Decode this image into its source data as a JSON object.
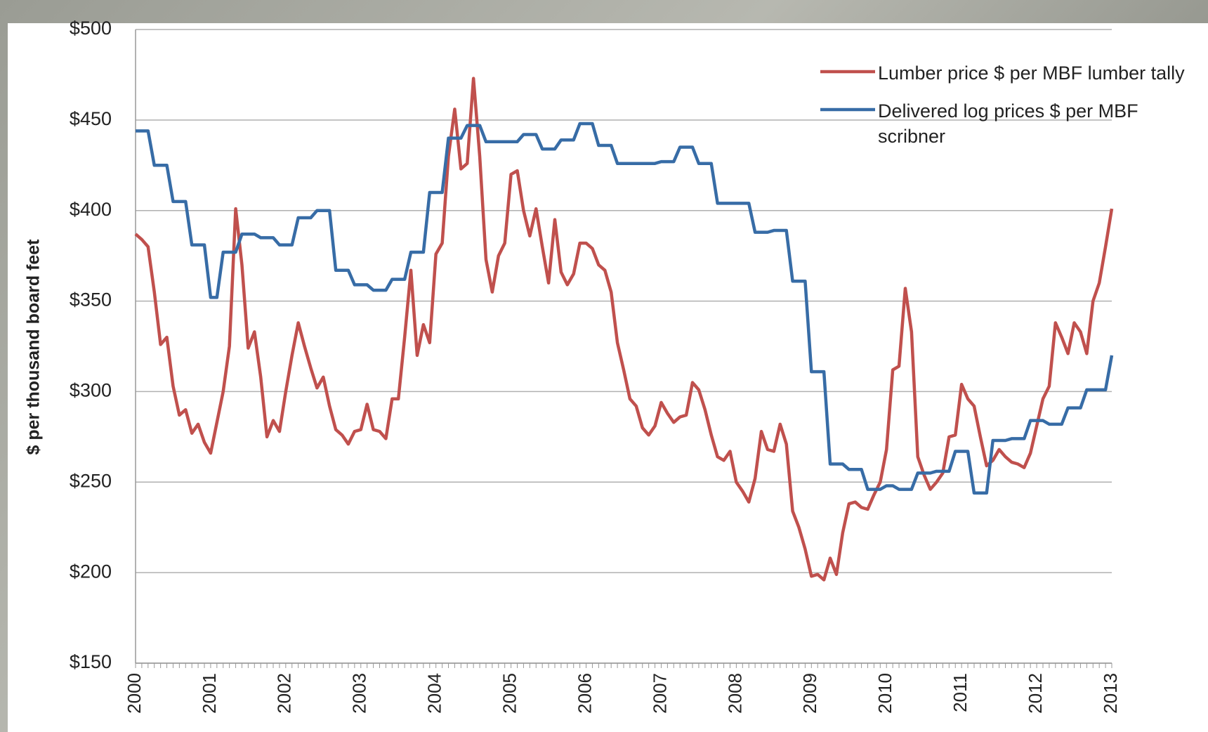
{
  "chart_data": {
    "type": "line",
    "ylabel": "$ per thousand board feet",
    "categories": [
      "2000",
      null,
      null,
      null,
      null,
      null,
      null,
      null,
      null,
      null,
      null,
      null,
      "2001",
      null,
      null,
      null,
      null,
      null,
      null,
      null,
      null,
      null,
      null,
      null,
      "2002",
      null,
      null,
      null,
      null,
      null,
      null,
      null,
      null,
      null,
      null,
      null,
      "2003",
      null,
      null,
      null,
      null,
      null,
      null,
      null,
      null,
      null,
      null,
      null,
      "2004",
      null,
      null,
      null,
      null,
      null,
      null,
      null,
      null,
      null,
      null,
      null,
      "2005",
      null,
      null,
      null,
      null,
      null,
      null,
      null,
      null,
      null,
      null,
      null,
      "2006",
      null,
      null,
      null,
      null,
      null,
      null,
      null,
      null,
      null,
      null,
      null,
      "2007",
      null,
      null,
      null,
      null,
      null,
      null,
      null,
      null,
      null,
      null,
      null,
      "2008",
      null,
      null,
      null,
      null,
      null,
      null,
      null,
      null,
      null,
      null,
      null,
      "2009",
      null,
      null,
      null,
      null,
      null,
      null,
      null,
      null,
      null,
      null,
      null,
      "2010",
      null,
      null,
      null,
      null,
      null,
      null,
      null,
      null,
      null,
      null,
      null,
      "2011",
      null,
      null,
      null,
      null,
      null,
      null,
      null,
      null,
      null,
      null,
      null,
      "2012",
      null,
      null,
      null,
      null,
      null,
      null,
      null,
      null,
      null,
      null,
      null,
      "2013"
    ],
    "series": [
      {
        "name": "Lumber price $ per MBF lumber tally",
        "color": "#c0504d",
        "values": [
          387,
          384,
          380,
          355,
          326,
          330,
          303,
          287,
          290,
          277,
          282,
          272,
          266,
          283,
          300,
          325,
          401,
          370,
          324,
          333,
          308,
          275,
          284,
          278,
          300,
          320,
          338,
          325,
          313,
          302,
          308,
          292,
          279,
          276,
          271,
          278,
          279,
          293,
          279,
          278,
          274,
          296,
          296,
          330,
          367,
          320,
          337,
          327,
          376,
          382,
          430,
          456,
          423,
          426,
          473,
          430,
          373,
          355,
          375,
          382,
          420,
          422,
          400,
          386,
          401,
          380,
          360,
          395,
          366,
          359,
          365,
          382,
          382,
          379,
          370,
          367,
          355,
          327,
          312,
          296,
          292,
          280,
          276,
          281,
          294,
          288,
          283,
          286,
          287,
          305,
          301,
          290,
          276,
          264,
          262,
          267,
          250,
          245,
          239,
          252,
          278,
          268,
          267,
          282,
          271,
          234,
          225,
          213,
          198,
          199,
          196,
          208,
          199,
          222,
          238,
          239,
          236,
          235,
          243,
          250,
          268,
          312,
          314,
          357,
          333,
          264,
          254,
          246,
          250,
          255,
          275,
          276,
          304,
          296,
          292,
          275,
          259,
          262,
          268,
          264,
          261,
          260,
          258,
          266,
          281,
          296,
          303,
          338,
          330,
          321,
          338,
          333,
          321,
          350,
          360,
          380,
          401
        ]
      },
      {
        "name": "Delivered log prices $ per MBF scribner",
        "color": "#376ca6",
        "values": [
          444,
          444,
          444,
          425,
          425,
          425,
          405,
          405,
          405,
          381,
          381,
          381,
          352,
          352,
          377,
          377,
          377,
          387,
          387,
          387,
          385,
          385,
          385,
          381,
          381,
          381,
          396,
          396,
          396,
          400,
          400,
          400,
          367,
          367,
          367,
          359,
          359,
          359,
          356,
          356,
          356,
          362,
          362,
          362,
          377,
          377,
          377,
          410,
          410,
          410,
          440,
          440,
          440,
          447,
          447,
          447,
          438,
          438,
          438,
          438,
          438,
          438,
          442,
          442,
          442,
          434,
          434,
          434,
          439,
          439,
          439,
          448,
          448,
          448,
          436,
          436,
          436,
          426,
          426,
          426,
          426,
          426,
          426,
          426,
          427,
          427,
          427,
          435,
          435,
          435,
          426,
          426,
          426,
          404,
          404,
          404,
          404,
          404,
          404,
          388,
          388,
          388,
          389,
          389,
          389,
          361,
          361,
          361,
          311,
          311,
          311,
          260,
          260,
          260,
          257,
          257,
          257,
          246,
          246,
          246,
          248,
          248,
          246,
          246,
          246,
          255,
          255,
          255,
          256,
          256,
          256,
          267,
          267,
          267,
          244,
          244,
          244,
          273,
          273,
          273,
          274,
          274,
          274,
          284,
          284,
          284,
          282,
          282,
          282,
          291,
          291,
          291,
          301,
          301,
          301,
          301,
          320
        ]
      }
    ],
    "ylim": [
      150,
      500
    ],
    "yticks": [
      {
        "value": 150,
        "label": "$150"
      },
      {
        "value": 200,
        "label": "$200"
      },
      {
        "value": 250,
        "label": "$250"
      },
      {
        "value": 300,
        "label": "$300"
      },
      {
        "value": 350,
        "label": "$350"
      },
      {
        "value": 400,
        "label": "$400"
      },
      {
        "value": 450,
        "label": "$450"
      },
      {
        "value": 500,
        "label": "$500"
      }
    ],
    "grid": true,
    "legend": "upper right"
  }
}
